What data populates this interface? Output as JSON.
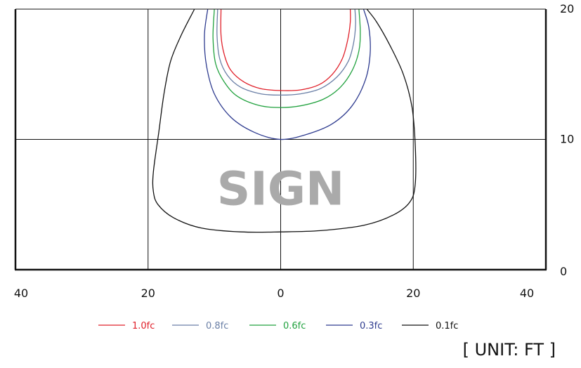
{
  "chart_data": {
    "type": "line",
    "title": "",
    "xlabel": "",
    "ylabel": "",
    "xlim": [
      -40,
      40
    ],
    "ylim": [
      0,
      20
    ],
    "x_ticks": [
      -40,
      -20,
      0,
      20,
      40
    ],
    "x_tick_labels": [
      "40",
      "20",
      "0",
      "20",
      "40"
    ],
    "y_ticks": [
      0,
      10,
      20
    ],
    "y_tick_labels": [
      "0",
      "10",
      "20"
    ],
    "grid": true,
    "legend_position": "bottom",
    "annotation": "SIGN",
    "unit_label": "[ UNIT: FT ]",
    "series": [
      {
        "name": "1.0fc",
        "color": "#e0202a",
        "x": [
          -9,
          -9,
          -8.5,
          -7.5,
          -5.5,
          -3,
          0,
          3,
          5.8,
          7.8,
          9.3,
          10.1,
          10.5,
          10.5
        ],
        "y": [
          20,
          18,
          16.5,
          15.3,
          14.4,
          13.9,
          13.75,
          13.8,
          14.2,
          15.0,
          16.2,
          17.6,
          19,
          20
        ]
      },
      {
        "name": "0.8fc",
        "color": "#6a7fa6",
        "x": [
          -9.5,
          -9.6,
          -9.2,
          -8,
          -6,
          -3,
          0,
          3,
          6,
          8.5,
          10.2,
          11,
          11.3,
          11.2
        ],
        "y": [
          20,
          18,
          16.2,
          14.9,
          14,
          13.5,
          13.4,
          13.5,
          13.9,
          14.8,
          16.0,
          17.4,
          18.8,
          20
        ]
      },
      {
        "name": "0.6fc",
        "color": "#22a23f",
        "x": [
          -10,
          -10.2,
          -9.8,
          -8.5,
          -6.5,
          -3.2,
          0,
          3.2,
          6.5,
          9,
          10.8,
          11.8,
          12,
          11.8
        ],
        "y": [
          20,
          17.8,
          15.8,
          14.4,
          13.3,
          12.6,
          12.45,
          12.6,
          13.1,
          14.0,
          15.3,
          16.8,
          18.3,
          20
        ]
      },
      {
        "name": "0.3fc",
        "color": "#2e3b8f",
        "x": [
          -11,
          -11.5,
          -11.2,
          -10,
          -7.5,
          -4,
          0,
          4,
          7.8,
          10.8,
          12.8,
          13.5,
          13.3,
          12.5
        ],
        "y": [
          20,
          18,
          15.7,
          13.5,
          11.7,
          10.55,
          10.0,
          10.4,
          11.2,
          12.6,
          14.6,
          16.6,
          18.6,
          20
        ]
      },
      {
        "name": "0.1fc",
        "color": "#111111",
        "x": [
          -13,
          -15,
          -16.6,
          -17.6,
          -18.4,
          -19.2,
          -19.2,
          -18.5,
          -16.2,
          -12,
          -6,
          0,
          6,
          12.5,
          17,
          19.5,
          20.3,
          20.3,
          19.8,
          18.5,
          16.5,
          14.5,
          13
        ],
        "y": [
          20,
          18,
          16,
          13.5,
          10.5,
          7.5,
          6.0,
          5.0,
          4.0,
          3.2,
          2.9,
          2.9,
          3.0,
          3.4,
          4.2,
          5.2,
          6.6,
          9.5,
          12.5,
          15,
          17.2,
          19,
          20
        ]
      }
    ]
  }
}
